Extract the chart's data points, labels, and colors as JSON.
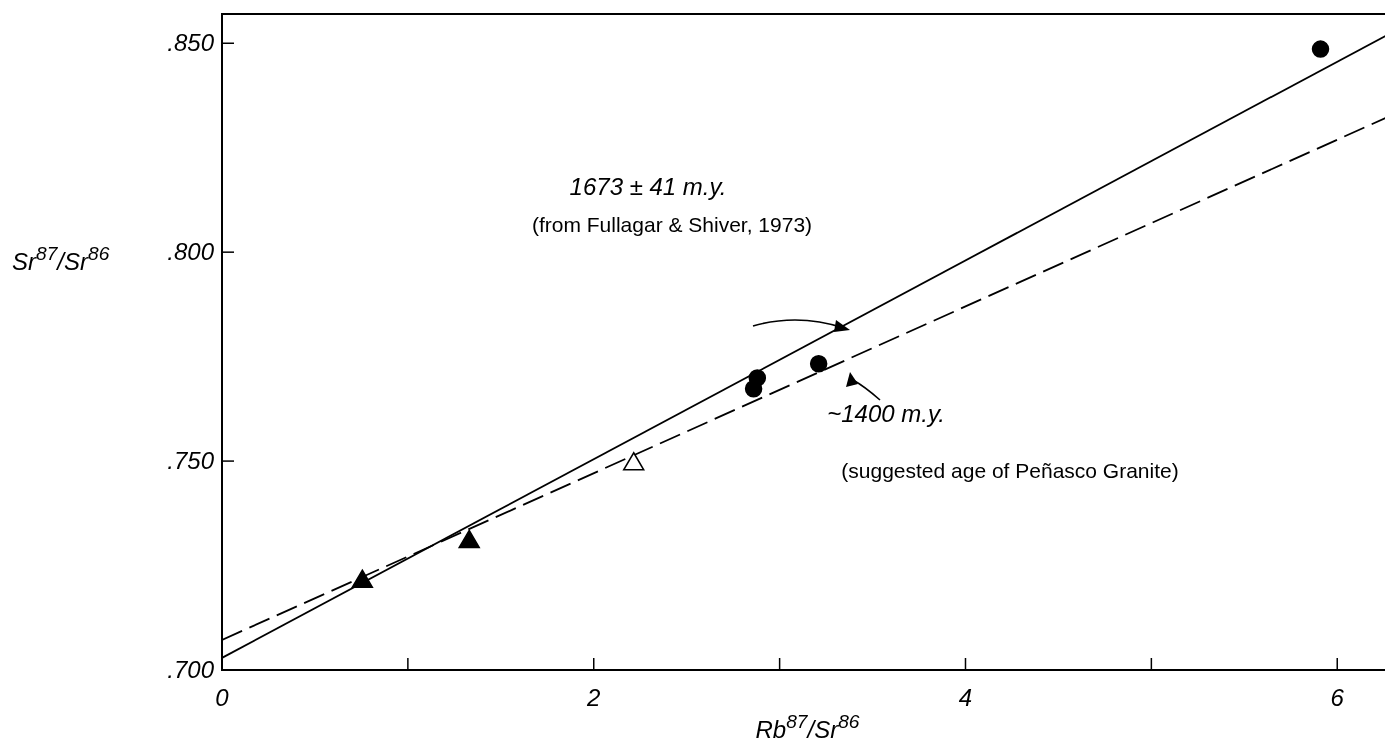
{
  "chart_data": {
    "type": "scatter",
    "xlabel": "Rb$^{87}$/Sr$^{86}$",
    "ylabel": "Sr$^{87}$/Sr$^{86}$",
    "xlim": [
      0,
      6.3
    ],
    "ylim": [
      0.7,
      0.857
    ],
    "xticks": [
      0,
      {
        "value": 1,
        "label": null
      },
      2,
      {
        "value": 3,
        "label": null
      },
      4,
      {
        "value": 5,
        "label": null
      },
      6
    ],
    "yticks": [
      {
        "value": 0.7,
        "label": ".700"
      },
      {
        "value": 0.75,
        "label": ".750"
      },
      {
        "value": 0.8,
        "label": ".800"
      },
      {
        "value": 0.85,
        "label": ".850"
      }
    ],
    "grid": false,
    "series": [
      {
        "marker": "circle",
        "color": "#000000",
        "x": [
          2.86,
          2.88,
          3.21,
          5.91
        ],
        "values": [
          0.7673,
          0.7699,
          0.7733,
          0.8486
        ]
      },
      {
        "marker": "triangle",
        "color": "#000000",
        "x": [
          0.755,
          1.33
        ],
        "values": [
          0.7215,
          0.731
        ]
      },
      {
        "marker": "triangle",
        "color": "#ffffff",
        "x": [
          2.215
        ],
        "values": [
          0.7496
        ]
      },
      {
        "type": "line",
        "line_style": "solid",
        "color": "#000000",
        "x": [
          0,
          6.27
        ],
        "values": [
          0.7029,
          0.852
        ]
      },
      {
        "type": "line",
        "line_style": "dashed",
        "color": "#000000",
        "x": [
          0,
          6.27
        ],
        "values": [
          0.7072,
          0.8323
        ]
      }
    ],
    "annotations": [
      "1673 ± 41 m.y.",
      "(from Fullagar & Shiver, 1973)",
      "~1400 m.y.",
      "(suggested age of Peñasco Granite)"
    ]
  }
}
